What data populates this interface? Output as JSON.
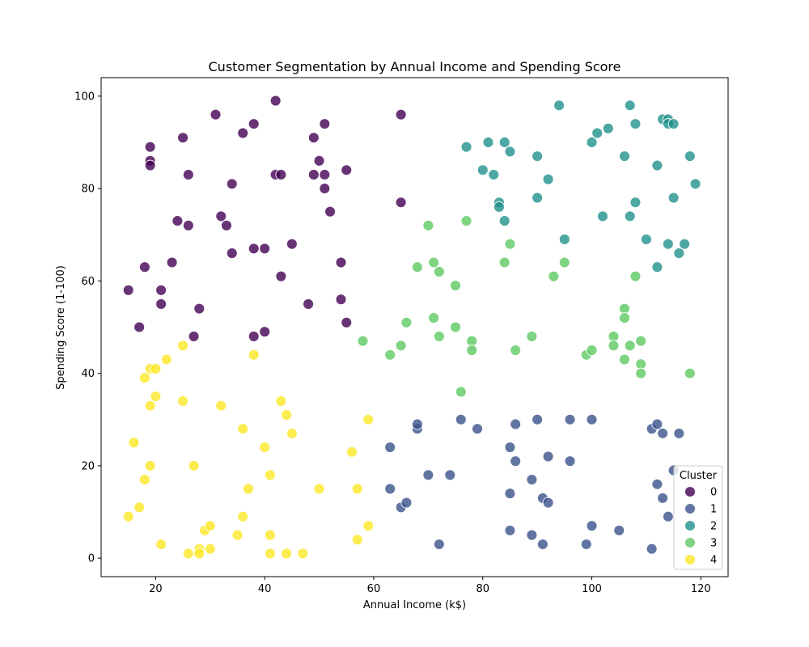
{
  "chart_data": {
    "type": "scatter",
    "title": "Customer Segmentation by Annual Income and Spending Score",
    "xlabel": "Annual Income (k$)",
    "ylabel": "Spending Score (1-100)",
    "xlim": [
      10,
      125
    ],
    "ylim": [
      -4,
      104
    ],
    "xticks": [
      20,
      40,
      60,
      80,
      100,
      120
    ],
    "yticks": [
      0,
      20,
      40,
      60,
      80,
      100
    ],
    "grid": false,
    "legend": {
      "title": "Cluster",
      "placement": "lower-right"
    },
    "series": [
      {
        "name": "0",
        "color": "#440154",
        "points": [
          [
            15,
            58
          ],
          [
            17,
            50
          ],
          [
            18,
            63
          ],
          [
            19,
            89
          ],
          [
            19,
            86
          ],
          [
            19,
            85
          ],
          [
            21,
            58
          ],
          [
            21,
            55
          ],
          [
            23,
            64
          ],
          [
            24,
            73
          ],
          [
            25,
            91
          ],
          [
            26,
            83
          ],
          [
            26,
            72
          ],
          [
            27,
            48
          ],
          [
            28,
            54
          ],
          [
            31,
            96
          ],
          [
            32,
            74
          ],
          [
            33,
            72
          ],
          [
            34,
            81
          ],
          [
            34,
            66
          ],
          [
            36,
            92
          ],
          [
            38,
            94
          ],
          [
            38,
            67
          ],
          [
            38,
            48
          ],
          [
            40,
            67
          ],
          [
            40,
            49
          ],
          [
            42,
            99
          ],
          [
            42,
            83
          ],
          [
            43,
            83
          ],
          [
            43,
            61
          ],
          [
            45,
            68
          ],
          [
            48,
            55
          ],
          [
            49,
            91
          ],
          [
            49,
            83
          ],
          [
            50,
            86
          ],
          [
            51,
            94
          ],
          [
            51,
            83
          ],
          [
            51,
            80
          ],
          [
            52,
            75
          ],
          [
            54,
            64
          ],
          [
            54,
            56
          ],
          [
            55,
            84
          ],
          [
            55,
            51
          ],
          [
            65,
            96
          ],
          [
            65,
            77
          ]
        ]
      },
      {
        "name": "1",
        "color": "#3b528b",
        "points": [
          [
            63,
            24
          ],
          [
            63,
            15
          ],
          [
            65,
            11
          ],
          [
            66,
            12
          ],
          [
            68,
            28
          ],
          [
            68,
            29
          ],
          [
            70,
            18
          ],
          [
            72,
            3
          ],
          [
            74,
            18
          ],
          [
            76,
            30
          ],
          [
            79,
            28
          ],
          [
            85,
            24
          ],
          [
            85,
            14
          ],
          [
            85,
            6
          ],
          [
            86,
            29
          ],
          [
            86,
            21
          ],
          [
            89,
            17
          ],
          [
            89,
            5
          ],
          [
            90,
            30
          ],
          [
            91,
            13
          ],
          [
            91,
            3
          ],
          [
            92,
            22
          ],
          [
            92,
            12
          ],
          [
            96,
            30
          ],
          [
            96,
            21
          ],
          [
            99,
            3
          ],
          [
            100,
            30
          ],
          [
            100,
            7
          ],
          [
            105,
            6
          ],
          [
            111,
            28
          ],
          [
            111,
            2
          ],
          [
            112,
            29
          ],
          [
            112,
            16
          ],
          [
            113,
            27
          ],
          [
            113,
            13
          ],
          [
            114,
            9
          ],
          [
            115,
            19
          ],
          [
            116,
            27
          ]
        ]
      },
      {
        "name": "2",
        "color": "#21918c",
        "points": [
          [
            77,
            89
          ],
          [
            80,
            84
          ],
          [
            81,
            90
          ],
          [
            82,
            83
          ],
          [
            83,
            77
          ],
          [
            83,
            76
          ],
          [
            84,
            90
          ],
          [
            84,
            73
          ],
          [
            85,
            88
          ],
          [
            90,
            87
          ],
          [
            90,
            78
          ],
          [
            92,
            82
          ],
          [
            94,
            98
          ],
          [
            95,
            69
          ],
          [
            100,
            90
          ],
          [
            101,
            92
          ],
          [
            102,
            74
          ],
          [
            103,
            93
          ],
          [
            106,
            87
          ],
          [
            107,
            98
          ],
          [
            107,
            74
          ],
          [
            108,
            94
          ],
          [
            108,
            77
          ],
          [
            110,
            69
          ],
          [
            112,
            85
          ],
          [
            112,
            63
          ],
          [
            113,
            95
          ],
          [
            114,
            95
          ],
          [
            114,
            94
          ],
          [
            115,
            94
          ],
          [
            115,
            78
          ],
          [
            114,
            68
          ],
          [
            116,
            66
          ],
          [
            117,
            68
          ],
          [
            118,
            87
          ],
          [
            119,
            81
          ]
        ]
      },
      {
        "name": "3",
        "color": "#5ec962",
        "points": [
          [
            58,
            47
          ],
          [
            63,
            44
          ],
          [
            65,
            46
          ],
          [
            66,
            51
          ],
          [
            68,
            63
          ],
          [
            70,
            72
          ],
          [
            71,
            64
          ],
          [
            71,
            52
          ],
          [
            72,
            62
          ],
          [
            72,
            48
          ],
          [
            75,
            59
          ],
          [
            75,
            50
          ],
          [
            76,
            36
          ],
          [
            77,
            73
          ],
          [
            78,
            47
          ],
          [
            78,
            45
          ],
          [
            84,
            64
          ],
          [
            85,
            68
          ],
          [
            86,
            45
          ],
          [
            89,
            48
          ],
          [
            93,
            61
          ],
          [
            95,
            64
          ],
          [
            99,
            44
          ],
          [
            100,
            45
          ],
          [
            104,
            48
          ],
          [
            104,
            46
          ],
          [
            106,
            54
          ],
          [
            106,
            52
          ],
          [
            106,
            43
          ],
          [
            107,
            46
          ],
          [
            108,
            61
          ],
          [
            109,
            47
          ],
          [
            109,
            42
          ],
          [
            109,
            40
          ],
          [
            118,
            40
          ]
        ]
      },
      {
        "name": "4",
        "color": "#fde725",
        "points": [
          [
            15,
            9
          ],
          [
            16,
            25
          ],
          [
            17,
            11
          ],
          [
            18,
            39
          ],
          [
            18,
            17
          ],
          [
            19,
            41
          ],
          [
            19,
            33
          ],
          [
            19,
            20
          ],
          [
            20,
            41
          ],
          [
            20,
            35
          ],
          [
            21,
            3
          ],
          [
            22,
            43
          ],
          [
            25,
            46
          ],
          [
            25,
            34
          ],
          [
            26,
            1
          ],
          [
            27,
            20
          ],
          [
            28,
            2
          ],
          [
            28,
            1
          ],
          [
            29,
            6
          ],
          [
            30,
            7
          ],
          [
            30,
            2
          ],
          [
            32,
            33
          ],
          [
            35,
            5
          ],
          [
            36,
            28
          ],
          [
            36,
            9
          ],
          [
            37,
            15
          ],
          [
            38,
            44
          ],
          [
            40,
            24
          ],
          [
            41,
            18
          ],
          [
            41,
            5
          ],
          [
            41,
            1
          ],
          [
            43,
            34
          ],
          [
            44,
            31
          ],
          [
            44,
            1
          ],
          [
            45,
            27
          ],
          [
            47,
            1
          ],
          [
            50,
            15
          ],
          [
            56,
            23
          ],
          [
            57,
            15
          ],
          [
            57,
            4
          ],
          [
            59,
            30
          ],
          [
            59,
            7
          ]
        ]
      }
    ]
  }
}
